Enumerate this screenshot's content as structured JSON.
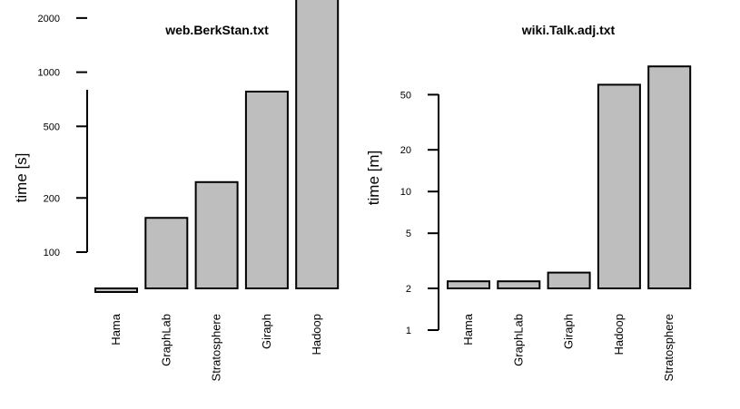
{
  "chart_data": [
    {
      "type": "bar",
      "title": "web.BerkStan.txt",
      "ylabel": "time [s]",
      "xlabel": "",
      "yscale": "log",
      "categories": [
        "Hama",
        "GraphLab",
        "Stratosphere",
        "Giraph",
        "Hadoop"
      ],
      "values": [
        60,
        155,
        245,
        780,
        4000
      ],
      "yticks": [
        100,
        200,
        500,
        1000,
        2000
      ],
      "ytick_labels": [
        "100",
        "200",
        "500",
        "1000",
        "2000"
      ],
      "bar_color": "#bebebe"
    },
    {
      "type": "bar",
      "title": "wiki.Talk.adj.txt",
      "ylabel": "time [m]",
      "xlabel": "",
      "yscale": "log",
      "categories": [
        "Hama",
        "GraphLab",
        "Giraph",
        "Hadoop",
        "Stratosphere"
      ],
      "values": [
        2.25,
        2.25,
        2.6,
        59,
        80
      ],
      "yticks": [
        1,
        2,
        5,
        10,
        20,
        50
      ],
      "ytick_labels": [
        "1",
        "2",
        "5",
        "10",
        "20",
        "50"
      ],
      "bar_color": "#bebebe"
    }
  ]
}
